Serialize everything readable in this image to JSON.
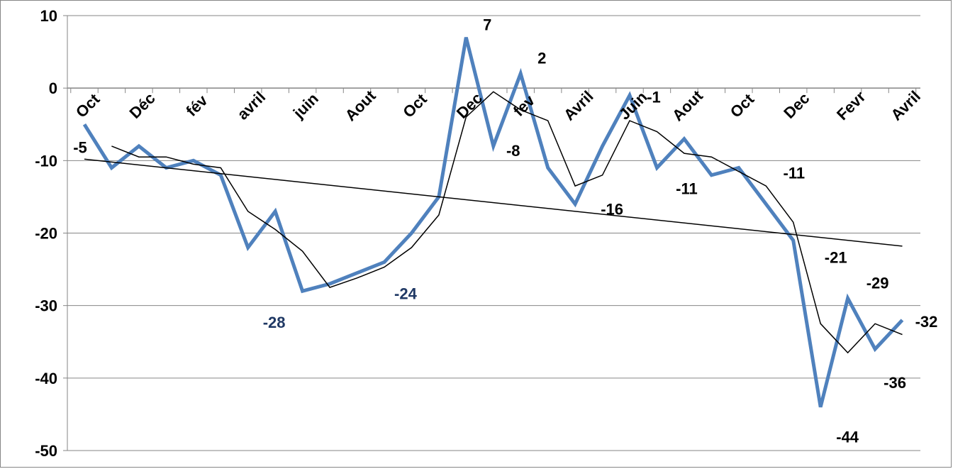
{
  "chart_data": {
    "type": "line",
    "ylim": [
      -50,
      10
    ],
    "yticks": [
      10,
      0,
      -10,
      -20,
      -30,
      -40,
      -50
    ],
    "grid": "horizontal",
    "category_labels": [
      "Oct",
      "Déc",
      "fév",
      "avril",
      "juin",
      "Aout",
      "Oct",
      "Dec",
      "fev",
      "Avril",
      "Juin",
      "Aout",
      "Oct",
      "Dec",
      "Fevr",
      "Avril"
    ],
    "series": [
      {
        "color": "#4F81BD",
        "values": [
          -5,
          -11,
          -8,
          -11,
          -10,
          -12,
          -22,
          -17,
          -28,
          -27,
          -25.5,
          -24,
          -20,
          -15,
          7,
          -8,
          2,
          -11,
          -16,
          -8,
          -1,
          -11,
          -7,
          -12,
          -11,
          -16,
          -21,
          -44,
          -29,
          -36,
          -32
        ]
      },
      {
        "color": "#000000",
        "values": [
          null,
          -8,
          -9.5,
          -9.5,
          -10.5,
          -11,
          -17,
          -19.5,
          -22.5,
          -27.5,
          -26.2,
          -24.7,
          -22,
          -17.5,
          -4,
          -0.5,
          -3,
          -4.5,
          -13.5,
          -12,
          -4.5,
          -6,
          -9,
          -9.5,
          -11.5,
          -13.5,
          -18.5,
          -32.5,
          -36.5,
          -32.5,
          -34
        ]
      },
      {
        "color": "#000000",
        "values": [
          -9.8,
          -21.8
        ]
      }
    ],
    "data_labels": [
      {
        "text": "-5",
        "index": 0,
        "value": -5,
        "color": "#000000"
      },
      {
        "text": "-28",
        "index": 8,
        "value": -28,
        "color": "#1F3864"
      },
      {
        "text": "-24",
        "index": 11,
        "value": -24,
        "color": "#1F3864"
      },
      {
        "text": "7",
        "index": 14,
        "value": 7,
        "color": "#000000"
      },
      {
        "text": "-8",
        "index": 15,
        "value": -8,
        "color": "#000000"
      },
      {
        "text": "2",
        "index": 16,
        "value": 2,
        "color": "#000000"
      },
      {
        "text": "-16",
        "index": 18,
        "value": -16,
        "color": "#000000"
      },
      {
        "text": "-1",
        "index": 20,
        "value": -1,
        "color": "#000000"
      },
      {
        "text": "-11",
        "index": 21,
        "value": -11,
        "color": "#000000"
      },
      {
        "text": "-11",
        "index": 24,
        "value": -11,
        "color": "#000000"
      },
      {
        "text": "-21",
        "index": 26,
        "value": -21,
        "color": "#000000"
      },
      {
        "text": "-44",
        "index": 27,
        "value": -44,
        "color": "#000000"
      },
      {
        "text": "-29",
        "index": 28,
        "value": -29,
        "color": "#000000"
      },
      {
        "text": "-36",
        "index": 29,
        "value": -36,
        "color": "#000000"
      },
      {
        "text": "-32",
        "index": 30,
        "value": -32,
        "color": "#000000"
      }
    ]
  }
}
